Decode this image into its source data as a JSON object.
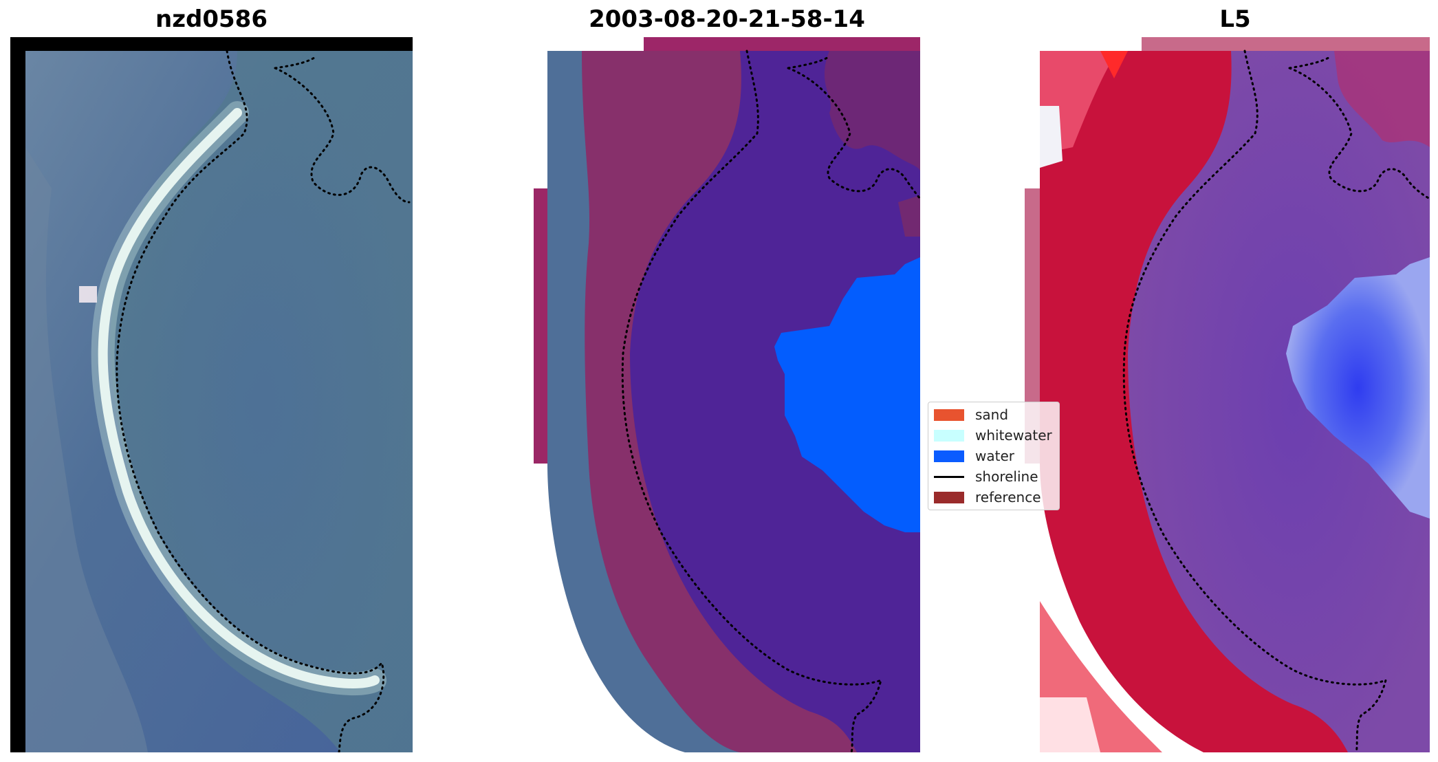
{
  "panels": [
    {
      "title": "nzd0586"
    },
    {
      "title": "2003-08-20-21-58-14"
    },
    {
      "title": "L5"
    }
  ],
  "legend": {
    "items": [
      {
        "label": "sand",
        "color": "#e8532f",
        "kind": "patch"
      },
      {
        "label": "whitewater",
        "color": "#c8ffff",
        "kind": "patch"
      },
      {
        "label": "water",
        "color": "#0a5cff",
        "kind": "patch"
      },
      {
        "label": "shoreline",
        "color": "#000000",
        "kind": "line"
      },
      {
        "label": "reference",
        "color": "#9a2b2b",
        "kind": "patch"
      }
    ]
  },
  "colors": {
    "rgb_water": "#4e6f98",
    "sand_beach": "#e6f2ee",
    "overlay_buffer": "#9e2a68",
    "overlay_water_region": "#4f2497",
    "classified_water": "#035dfe",
    "index_high": "#c8123c",
    "index_low": "#6b45b0",
    "index_water": "#3f52f2"
  }
}
